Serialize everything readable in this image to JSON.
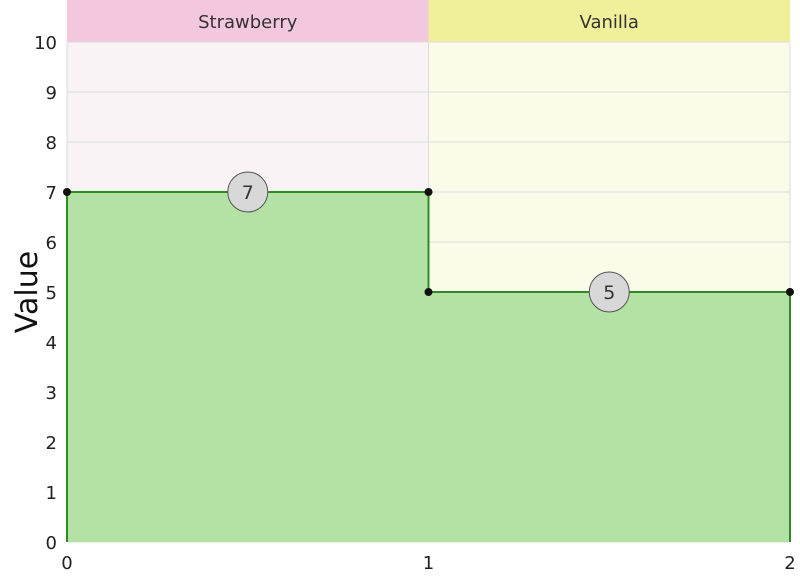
{
  "chart_data": {
    "type": "area",
    "x_ticks": [
      0,
      1,
      2
    ],
    "y_ticks": [
      0,
      1,
      2,
      3,
      4,
      5,
      6,
      7,
      8,
      9,
      10
    ],
    "xlim": [
      0,
      2
    ],
    "ylim": [
      0,
      10
    ],
    "ylabel": "Value",
    "grid": true,
    "categories": [
      {
        "name": "Strawberry",
        "x_start": 0,
        "x_end": 1,
        "value": 7,
        "label": "7",
        "header_color": "#f3c8df",
        "band_color": "#f9f3f6"
      },
      {
        "name": "Vanilla",
        "x_start": 1,
        "x_end": 2,
        "value": 5,
        "label": "5",
        "header_color": "#f1f09a",
        "band_color": "#fafbe9"
      }
    ],
    "fill_color": "#b3e2a4",
    "line_color": "#2e8b24"
  }
}
